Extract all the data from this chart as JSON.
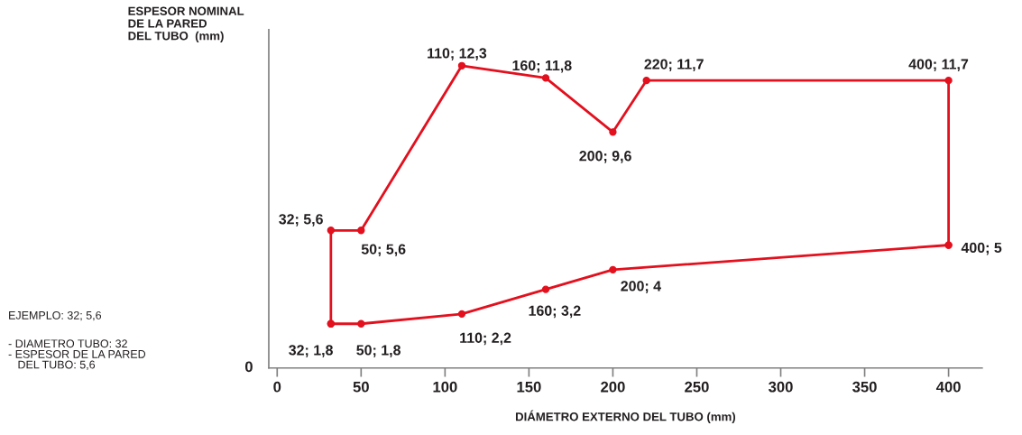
{
  "chart_data": {
    "type": "line",
    "ylabel": "ESPESOR NOMINAL\nDE LA PARED\nDEL TUBO  (mm)",
    "xlabel": "DIÁMETRO EXTERNO DEL TUBO (mm)",
    "series": [
      {
        "color": "#e3101e",
        "x": [
          32,
          32,
          50,
          110,
          160,
          200,
          220,
          400,
          400
        ],
        "values": [
          1.8,
          5.6,
          5.6,
          12.3,
          11.8,
          9.6,
          11.7,
          11.7,
          5
        ],
        "value_labels": [
          null,
          "32; 5,6",
          "50; 5,6",
          "110; 12,3",
          "160; 11,8",
          "200; 9,6",
          "220; 11,7",
          "400; 11,7",
          "400; 5"
        ]
      },
      {
        "color": "#e3101e",
        "x": [
          32,
          50,
          110,
          160,
          200,
          400
        ],
        "values": [
          1.8,
          1.8,
          2.2,
          3.2,
          4,
          5
        ],
        "value_labels": [
          "32; 1,8",
          "50; 1,8",
          "110; 2,2",
          "160; 3,2",
          "200; 4",
          null
        ]
      }
    ],
    "xlim": [
      -5,
      420
    ],
    "xticks": [
      0,
      50,
      100,
      150,
      200,
      250,
      300,
      350,
      400
    ],
    "marker": "circle",
    "line_style": "solid",
    "annotations": [
      "0",
      "EJEMPLO: 32; 5,6",
      "- DIAMETRO TUBO: 32\n- ESPESOR DE LA PARED\n   DEL TUBO: 5,6"
    ]
  }
}
